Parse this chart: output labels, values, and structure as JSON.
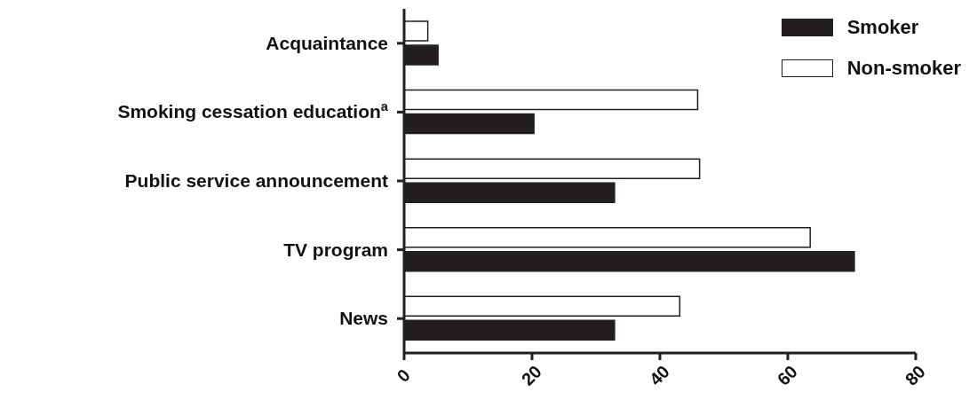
{
  "chart_data": {
    "type": "bar",
    "orientation": "horizontal",
    "categories": [
      "Acquaintance",
      "Smoking cessation education$^{a}$",
      "Public service announcement",
      "TV program",
      "News"
    ],
    "series": [
      {
        "name": "Smoker",
        "color": "#231f20",
        "values": [
          5.3,
          20.3,
          32.9,
          70.4,
          32.9
        ]
      },
      {
        "name": "Non-smoker",
        "color": "#ffffff",
        "values": [
          3.7,
          45.9,
          46.2,
          63.5,
          43.1
        ]
      }
    ],
    "xlim": [
      0,
      80
    ],
    "xticks": [
      0,
      20,
      40,
      60,
      80
    ],
    "grid": false,
    "legend": "top right"
  }
}
